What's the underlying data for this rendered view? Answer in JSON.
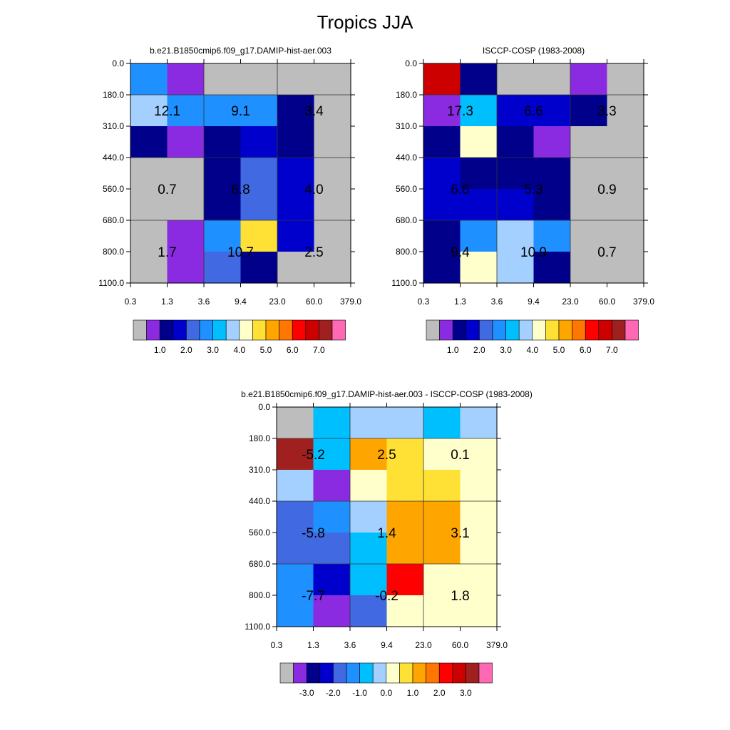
{
  "title": "Tropics JJA",
  "palette": {
    "seq": [
      "#bdbdbd",
      "#8a2be2",
      "#00008b",
      "#0000cd",
      "#4169e1",
      "#1e90ff",
      "#00bfff",
      "#a3d0ff",
      "#ffffcc",
      "#ffe135",
      "#ffa500",
      "#ff7700",
      "#ff0000",
      "#cd0000",
      "#a02020",
      "#ff69b4"
    ],
    "diff": [
      "#bdbdbd",
      "#8a2be2",
      "#00008b",
      "#0000cd",
      "#4169e1",
      "#1e90ff",
      "#00bfff",
      "#a3d0ff",
      "#ffffcc",
      "#ffe135",
      "#ffa500",
      "#ff7700",
      "#ff0000",
      "#cd0000",
      "#a02020",
      "#ff69b4"
    ]
  },
  "chart_data": [
    {
      "type": "heatmap",
      "title": "b.e21.B1850cmip6.f09_g17.DAMIP-hist-aer.003",
      "x_ticks": [
        "0.3",
        "1.3",
        "3.6",
        "9.4",
        "23.0",
        "60.0",
        "379.0"
      ],
      "y_ticks": [
        "0.0",
        "180.0",
        "310.0",
        "440.0",
        "560.0",
        "680.0",
        "800.0",
        "1100.0"
      ],
      "cells": [
        [
          5,
          1,
          0,
          0,
          0,
          0
        ],
        [
          7,
          5,
          5,
          5,
          2,
          0
        ],
        [
          2,
          1,
          2,
          3,
          2,
          0
        ],
        [
          0,
          0,
          2,
          4,
          3,
          0
        ],
        [
          0,
          0,
          2,
          4,
          3,
          0
        ],
        [
          0,
          1,
          5,
          9,
          3,
          0
        ],
        [
          0,
          1,
          4,
          2,
          0,
          0
        ]
      ],
      "box_labels": [
        [
          "12.1",
          "9.1",
          "3.4"
        ],
        [
          "0.7",
          "6.8",
          "4.0"
        ],
        [
          "1.7",
          "10.7",
          "2.5"
        ]
      ],
      "colorbar_labels": [
        "1.0",
        "2.0",
        "3.0",
        "4.0",
        "5.0",
        "6.0",
        "7.0"
      ]
    },
    {
      "type": "heatmap",
      "title": "ISCCP-COSP (1983-2008)",
      "x_ticks": [
        "0.3",
        "1.3",
        "3.6",
        "9.4",
        "23.0",
        "60.0",
        "379.0"
      ],
      "y_ticks": [
        "0.0",
        "180.0",
        "310.0",
        "440.0",
        "560.0",
        "680.0",
        "800.0",
        "1100.0"
      ],
      "cells": [
        [
          13,
          2,
          0,
          0,
          1,
          0
        ],
        [
          1,
          6,
          3,
          3,
          2,
          0
        ],
        [
          2,
          8,
          2,
          1,
          0,
          0
        ],
        [
          3,
          2,
          2,
          2,
          0,
          0
        ],
        [
          3,
          3,
          3,
          2,
          0,
          0
        ],
        [
          2,
          5,
          7,
          5,
          0,
          0
        ],
        [
          2,
          8,
          7,
          2,
          0,
          0
        ]
      ],
      "box_labels": [
        [
          "17.3",
          "6.6",
          "3.3"
        ],
        [
          "6.6",
          "5.3",
          "0.9"
        ],
        [
          "9.4",
          "10.9",
          "0.7"
        ]
      ],
      "colorbar_labels": [
        "1.0",
        "2.0",
        "3.0",
        "4.0",
        "5.0",
        "6.0",
        "7.0"
      ]
    },
    {
      "type": "heatmap",
      "title": "b.e21.B1850cmip6.f09_g17.DAMIP-hist-aer.003 - ISCCP-COSP (1983-2008)",
      "x_ticks": [
        "0.3",
        "1.3",
        "3.6",
        "9.4",
        "23.0",
        "60.0",
        "379.0"
      ],
      "y_ticks": [
        "0.0",
        "180.0",
        "310.0",
        "440.0",
        "560.0",
        "680.0",
        "800.0",
        "1100.0"
      ],
      "cells": [
        [
          0,
          6,
          7,
          7,
          6,
          7
        ],
        [
          14,
          6,
          10,
          9,
          8,
          8
        ],
        [
          7,
          1,
          8,
          9,
          9,
          8
        ],
        [
          4,
          5,
          7,
          10,
          10,
          8
        ],
        [
          4,
          4,
          6,
          10,
          10,
          8
        ],
        [
          5,
          3,
          6,
          12,
          8,
          8
        ],
        [
          5,
          1,
          4,
          8,
          8,
          8
        ]
      ],
      "box_labels": [
        [
          "-5.2",
          "2.5",
          "0.1"
        ],
        [
          "-5.8",
          "1.4",
          "3.1"
        ],
        [
          "-7.7",
          "-0.2",
          "1.8"
        ]
      ],
      "colorbar_labels": [
        "-3.0",
        "-2.0",
        "-1.0",
        "0.0",
        "1.0",
        "2.0",
        "3.0"
      ]
    }
  ]
}
